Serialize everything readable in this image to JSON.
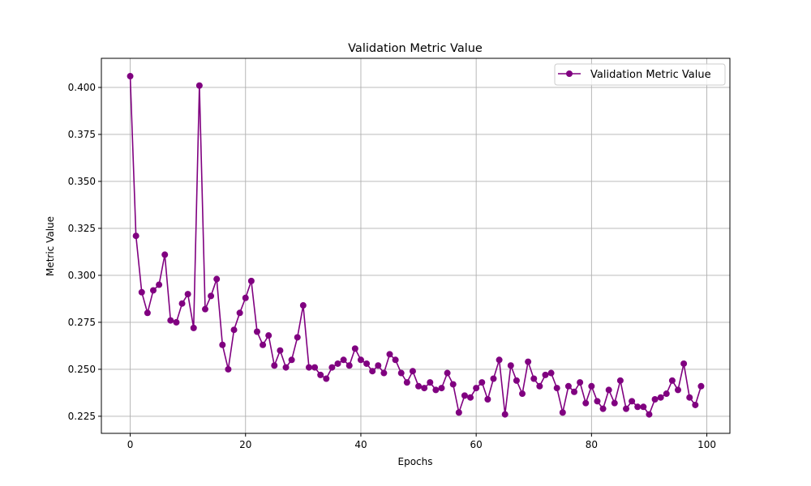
{
  "chart_data": {
    "type": "line",
    "title": "Validation Metric Value",
    "xlabel": "Epochs",
    "ylabel": "Metric Value",
    "xlim": [
      -5,
      104
    ],
    "ylim": [
      0.2159,
      0.4155
    ],
    "xticks": [
      0,
      20,
      40,
      60,
      80,
      100
    ],
    "yticks": [
      0.225,
      0.25,
      0.275,
      0.3,
      0.325,
      0.35,
      0.375,
      0.4
    ],
    "grid": true,
    "legend_position": "top-right",
    "series": [
      {
        "name": "Validation Metric Value",
        "color": "#800080",
        "marker": "circle",
        "x": [
          0,
          1,
          2,
          3,
          4,
          5,
          6,
          7,
          8,
          9,
          10,
          11,
          12,
          13,
          14,
          15,
          16,
          17,
          18,
          19,
          20,
          21,
          22,
          23,
          24,
          25,
          26,
          27,
          28,
          29,
          30,
          31,
          32,
          33,
          34,
          35,
          36,
          37,
          38,
          39,
          40,
          41,
          42,
          43,
          44,
          45,
          46,
          47,
          48,
          49,
          50,
          51,
          52,
          53,
          54,
          55,
          56,
          57,
          58,
          59,
          60,
          61,
          62,
          63,
          64,
          65,
          66,
          67,
          68,
          69,
          70,
          71,
          72,
          73,
          74,
          75,
          76,
          77,
          78,
          79,
          80,
          81,
          82,
          83,
          84,
          85,
          86,
          87,
          88,
          89,
          90,
          91,
          92,
          93,
          94,
          95,
          96,
          97,
          98,
          99
        ],
        "values": [
          0.406,
          0.321,
          0.291,
          0.28,
          0.292,
          0.295,
          0.311,
          0.276,
          0.275,
          0.285,
          0.29,
          0.272,
          0.401,
          0.282,
          0.289,
          0.298,
          0.263,
          0.25,
          0.271,
          0.28,
          0.288,
          0.297,
          0.27,
          0.263,
          0.268,
          0.252,
          0.26,
          0.251,
          0.255,
          0.267,
          0.284,
          0.251,
          0.251,
          0.247,
          0.245,
          0.251,
          0.253,
          0.255,
          0.252,
          0.261,
          0.255,
          0.253,
          0.249,
          0.252,
          0.248,
          0.258,
          0.255,
          0.248,
          0.243,
          0.249,
          0.241,
          0.24,
          0.243,
          0.239,
          0.24,
          0.248,
          0.242,
          0.227,
          0.236,
          0.235,
          0.24,
          0.243,
          0.234,
          0.245,
          0.255,
          0.226,
          0.252,
          0.244,
          0.237,
          0.254,
          0.245,
          0.241,
          0.247,
          0.248,
          0.24,
          0.227,
          0.241,
          0.238,
          0.243,
          0.232,
          0.241,
          0.233,
          0.229,
          0.239,
          0.232,
          0.244,
          0.229,
          0.233,
          0.23,
          0.23,
          0.226,
          0.234,
          0.235,
          0.237,
          0.244,
          0.239,
          0.253,
          0.235,
          0.231,
          0.241
        ]
      }
    ]
  }
}
